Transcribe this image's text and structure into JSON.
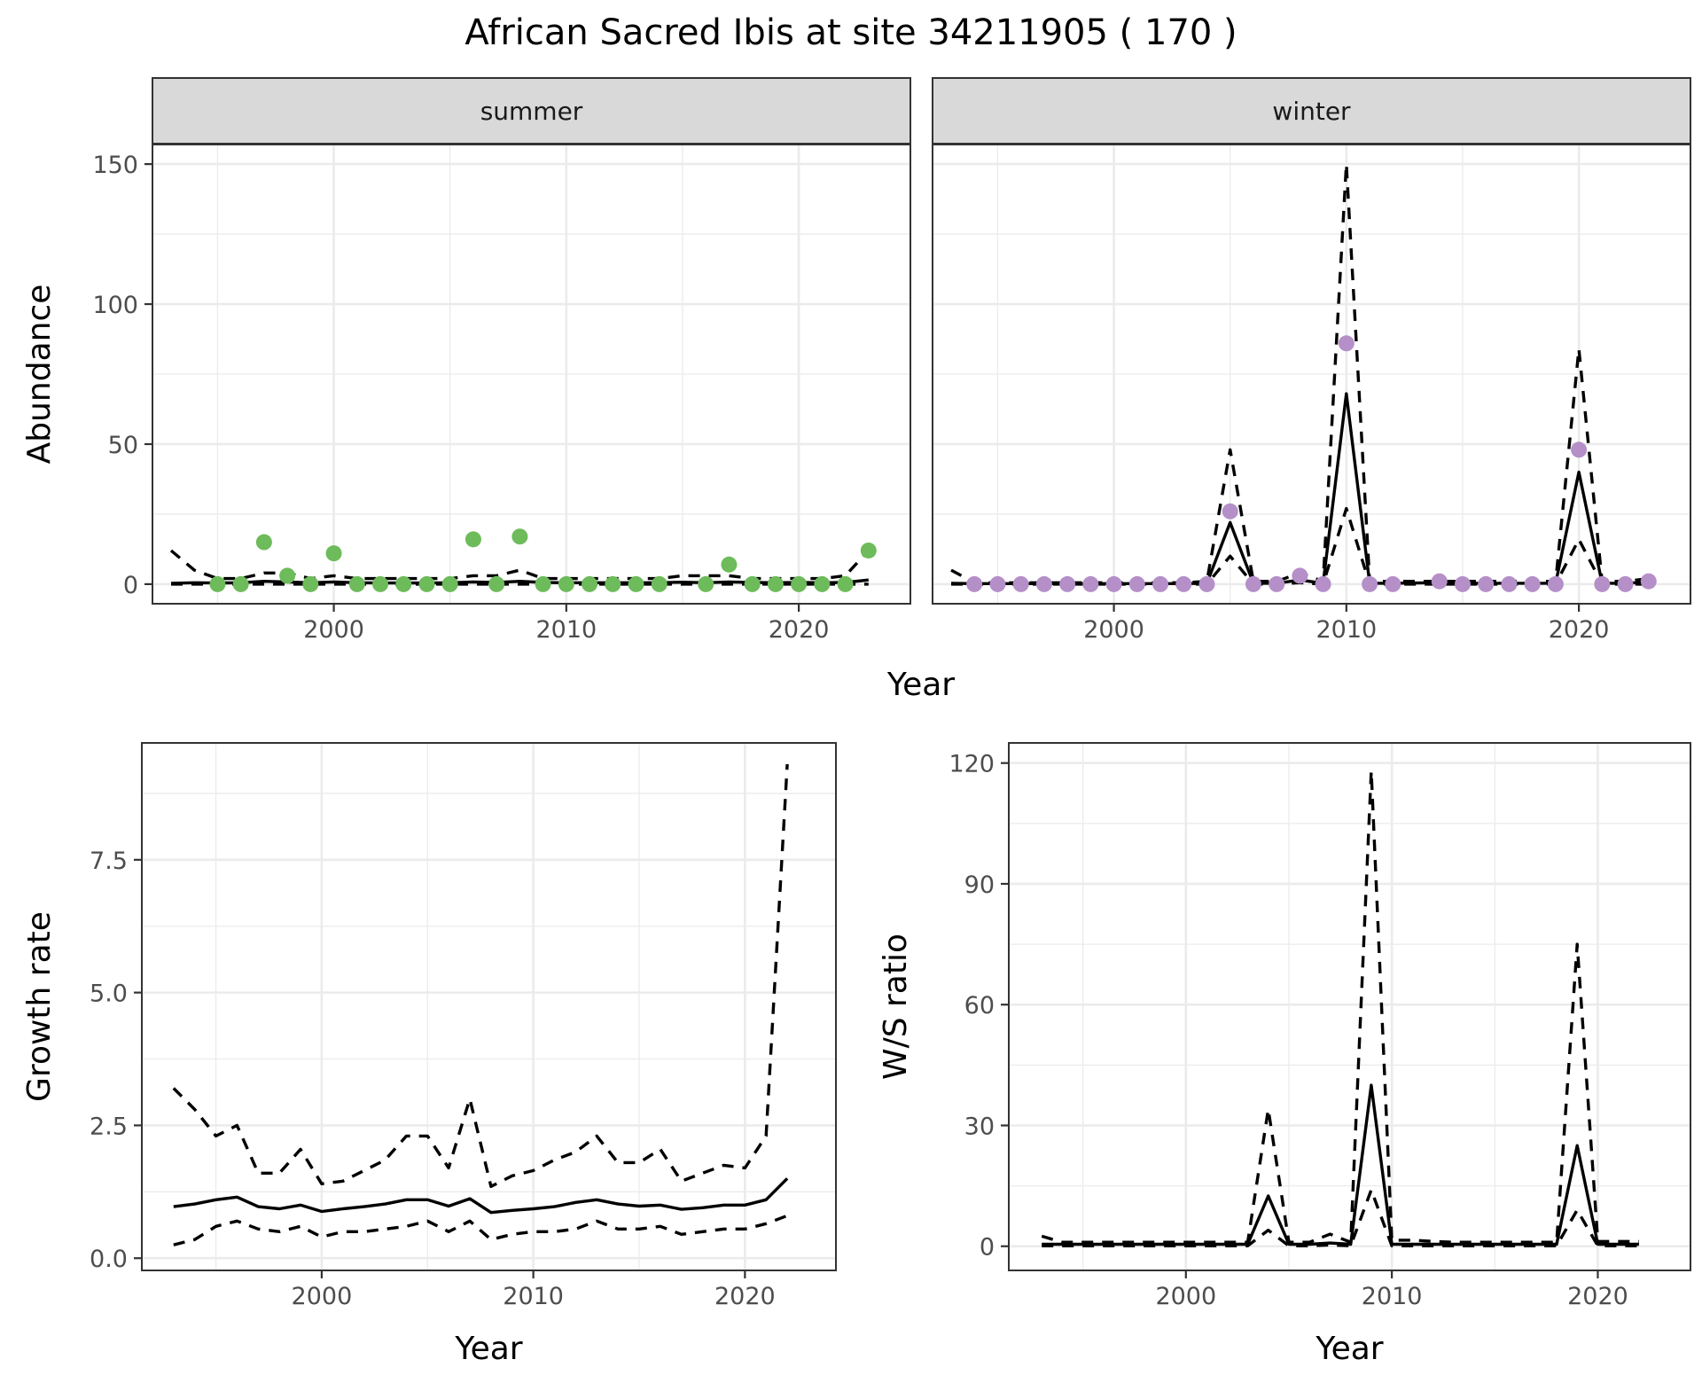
{
  "title": "African Sacred Ibis at site 34211905 ( 170 )",
  "colors": {
    "summer_points": "#6dbb5a",
    "winter_points": "#b58fc8",
    "line": "#000000",
    "strip_fill": "#d9d9d9",
    "grid": "#ebebeb"
  },
  "chart_data": [
    {
      "id": "abundance-summer",
      "type": "line",
      "facet": "summer",
      "xlabel": "Year",
      "ylabel": "Abundance",
      "xlim": [
        1992.2,
        2024.8
      ],
      "ylim": [
        -7,
        157
      ],
      "xticks": [
        2000,
        2010,
        2020
      ],
      "yticks": [
        0,
        50,
        100,
        150
      ],
      "grid": true,
      "points": {
        "name": "observed counts",
        "x": [
          1995,
          1996,
          1997,
          1998,
          1999,
          2000,
          2001,
          2002,
          2003,
          2004,
          2005,
          2006,
          2007,
          2008,
          2009,
          2010,
          2011,
          2012,
          2013,
          2014,
          2016,
          2017,
          2018,
          2019,
          2020,
          2021,
          2022,
          2023
        ],
        "y": [
          0,
          0,
          15,
          3,
          0,
          11,
          0,
          0,
          0,
          0,
          0,
          16,
          0,
          17,
          0,
          0,
          0,
          0,
          0,
          0,
          0,
          7,
          0,
          0,
          0,
          0,
          0,
          12
        ]
      },
      "series": [
        {
          "name": "mean",
          "style": "solid",
          "x": [
            1993,
            1994,
            1995,
            1996,
            1997,
            1998,
            1999,
            2000,
            2001,
            2002,
            2003,
            2004,
            2005,
            2006,
            2007,
            2008,
            2009,
            2010,
            2011,
            2012,
            2013,
            2014,
            2015,
            2016,
            2017,
            2018,
            2019,
            2020,
            2021,
            2022,
            2023
          ],
          "y": [
            0.3,
            0.5,
            0.4,
            0.5,
            1,
            0.8,
            0.5,
            0.8,
            0.5,
            0.4,
            0.4,
            0.4,
            0.5,
            0.8,
            0.6,
            1,
            0.6,
            0.5,
            0.5,
            0.5,
            0.5,
            0.5,
            0.7,
            0.5,
            0.8,
            0.6,
            0.5,
            0.6,
            0.5,
            0.6,
            1.5
          ]
        },
        {
          "name": "upper",
          "style": "dashed",
          "x": [
            1993,
            1994,
            1995,
            1996,
            1997,
            1998,
            1999,
            2000,
            2001,
            2002,
            2003,
            2004,
            2005,
            2006,
            2007,
            2008,
            2009,
            2010,
            2011,
            2012,
            2013,
            2014,
            2015,
            2016,
            2017,
            2018,
            2019,
            2020,
            2021,
            2022,
            2023
          ],
          "y": [
            12,
            5,
            2,
            2,
            4,
            4,
            2,
            3,
            2,
            2,
            2,
            2,
            2,
            3,
            3,
            5,
            2,
            2,
            2,
            2,
            2,
            2,
            3,
            3,
            3,
            2,
            2,
            2,
            2,
            3,
            12
          ]
        },
        {
          "name": "lower",
          "style": "dashed",
          "x": [
            1993,
            1994,
            1995,
            1996,
            1997,
            1998,
            1999,
            2000,
            2001,
            2002,
            2003,
            2004,
            2005,
            2006,
            2007,
            2008,
            2009,
            2010,
            2011,
            2012,
            2013,
            2014,
            2015,
            2016,
            2017,
            2018,
            2019,
            2020,
            2021,
            2022,
            2023
          ],
          "y": [
            0,
            0,
            0,
            0,
            0,
            0,
            0,
            0,
            0,
            0,
            0,
            0,
            0,
            0,
            0,
            0,
            0,
            0,
            0,
            0,
            0,
            0,
            0,
            0,
            0,
            0,
            0,
            0,
            0,
            0,
            0
          ]
        }
      ]
    },
    {
      "id": "abundance-winter",
      "type": "line",
      "facet": "winter",
      "xlabel": "Year",
      "ylabel": "Abundance",
      "xlim": [
        1992.2,
        2024.8
      ],
      "ylim": [
        -7,
        157
      ],
      "xticks": [
        2000,
        2010,
        2020
      ],
      "yticks": [
        0,
        50,
        100,
        150
      ],
      "grid": true,
      "points": {
        "name": "observed counts",
        "x": [
          1994,
          1995,
          1996,
          1997,
          1998,
          1999,
          2000,
          2001,
          2002,
          2003,
          2004,
          2005,
          2006,
          2007,
          2008,
          2009,
          2010,
          2011,
          2012,
          2014,
          2015,
          2016,
          2017,
          2018,
          2019,
          2020,
          2021,
          2022,
          2023
        ],
        "y": [
          0,
          0,
          0,
          0,
          0,
          0,
          0,
          0,
          0,
          0,
          0,
          26,
          0,
          0,
          3,
          0,
          86,
          0,
          0,
          1,
          0,
          0,
          0,
          0,
          0,
          48,
          0,
          0,
          1
        ]
      },
      "series": [
        {
          "name": "mean",
          "style": "solid",
          "x": [
            1993,
            1994,
            1995,
            1996,
            1997,
            1998,
            1999,
            2000,
            2001,
            2002,
            2003,
            2004,
            2005,
            2006,
            2007,
            2008,
            2009,
            2010,
            2011,
            2012,
            2013,
            2014,
            2015,
            2016,
            2017,
            2018,
            2019,
            2020,
            2021,
            2022,
            2023
          ],
          "y": [
            0.3,
            0.2,
            0.2,
            0.2,
            0.2,
            0.2,
            0.2,
            0.2,
            0.2,
            0.2,
            0.2,
            0.3,
            22,
            0.3,
            0.3,
            1.5,
            0.3,
            68,
            0.3,
            0.3,
            0.4,
            0.5,
            0.3,
            0.3,
            0.3,
            0.3,
            0.3,
            40,
            0.3,
            0.3,
            0.8
          ]
        },
        {
          "name": "upper",
          "style": "dashed",
          "x": [
            1993,
            1994,
            1995,
            1996,
            1997,
            1998,
            1999,
            2000,
            2001,
            2002,
            2003,
            2004,
            2005,
            2006,
            2007,
            2008,
            2009,
            2010,
            2011,
            2012,
            2013,
            2014,
            2015,
            2016,
            2017,
            2018,
            2019,
            2020,
            2021,
            2022,
            2023
          ],
          "y": [
            5,
            0.5,
            0.5,
            0.5,
            0.5,
            0.5,
            0.5,
            0.5,
            0.5,
            0.5,
            0.5,
            1,
            48,
            1,
            1,
            4,
            1,
            150,
            1,
            1,
            1,
            1,
            1,
            1,
            1,
            1,
            1,
            84,
            1,
            1,
            2
          ]
        },
        {
          "name": "lower",
          "style": "dashed",
          "x": [
            1993,
            1994,
            1995,
            1996,
            1997,
            1998,
            1999,
            2000,
            2001,
            2002,
            2003,
            2004,
            2005,
            2006,
            2007,
            2008,
            2009,
            2010,
            2011,
            2012,
            2013,
            2014,
            2015,
            2016,
            2017,
            2018,
            2019,
            2020,
            2021,
            2022,
            2023
          ],
          "y": [
            0,
            0,
            0,
            0,
            0,
            0,
            0,
            0,
            0,
            0,
            0,
            0,
            10,
            0,
            0,
            0.5,
            0,
            27,
            0,
            0,
            0,
            0,
            0,
            0,
            0,
            0,
            0,
            16,
            0,
            0,
            0
          ]
        }
      ]
    },
    {
      "id": "growth-rate",
      "type": "line",
      "xlabel": "Year",
      "ylabel": "Growth rate",
      "xlim": [
        1991.5,
        2024.3
      ],
      "ylim": [
        -0.23,
        9.7
      ],
      "xticks": [
        2000,
        2010,
        2020
      ],
      "yticks": [
        0.0,
        2.5,
        5.0,
        7.5
      ],
      "ytick_labels": [
        "0.0",
        "2.5",
        "5.0",
        "7.5"
      ],
      "grid": true,
      "series": [
        {
          "name": "mean",
          "style": "solid",
          "x": [
            1993,
            1994,
            1995,
            1996,
            1997,
            1998,
            1999,
            2000,
            2001,
            2002,
            2003,
            2004,
            2005,
            2006,
            2007,
            2008,
            2009,
            2010,
            2011,
            2012,
            2013,
            2014,
            2015,
            2016,
            2017,
            2018,
            2019,
            2020,
            2021,
            2022
          ],
          "y": [
            0.97,
            1.02,
            1.1,
            1.15,
            0.97,
            0.93,
            1.0,
            0.88,
            0.93,
            0.97,
            1.02,
            1.1,
            1.1,
            0.98,
            1.12,
            0.86,
            0.9,
            0.93,
            0.97,
            1.05,
            1.1,
            1.02,
            0.98,
            1.0,
            0.92,
            0.95,
            1.0,
            1.0,
            1.1,
            1.5
          ]
        },
        {
          "name": "upper",
          "style": "dashed",
          "x": [
            1993,
            1994,
            1995,
            1996,
            1997,
            1998,
            1999,
            2000,
            2001,
            2002,
            2003,
            2004,
            2005,
            2006,
            2007,
            2008,
            2009,
            2010,
            2011,
            2012,
            2013,
            2014,
            2015,
            2016,
            2017,
            2018,
            2019,
            2020,
            2021,
            2022
          ],
          "y": [
            3.2,
            2.8,
            2.3,
            2.5,
            1.6,
            1.6,
            2.05,
            1.4,
            1.45,
            1.65,
            1.85,
            2.3,
            2.3,
            1.7,
            3.0,
            1.35,
            1.55,
            1.65,
            1.85,
            2.0,
            2.3,
            1.8,
            1.8,
            2.05,
            1.45,
            1.6,
            1.75,
            1.7,
            2.3,
            9.3
          ]
        },
        {
          "name": "lower",
          "style": "dashed",
          "x": [
            1993,
            1994,
            1995,
            1996,
            1997,
            1998,
            1999,
            2000,
            2001,
            2002,
            2003,
            2004,
            2005,
            2006,
            2007,
            2008,
            2009,
            2010,
            2011,
            2012,
            2013,
            2014,
            2015,
            2016,
            2017,
            2018,
            2019,
            2020,
            2021,
            2022
          ],
          "y": [
            0.25,
            0.35,
            0.6,
            0.7,
            0.55,
            0.5,
            0.6,
            0.4,
            0.5,
            0.5,
            0.55,
            0.6,
            0.7,
            0.5,
            0.7,
            0.35,
            0.45,
            0.5,
            0.5,
            0.55,
            0.7,
            0.55,
            0.55,
            0.6,
            0.45,
            0.5,
            0.55,
            0.55,
            0.65,
            0.8
          ]
        }
      ]
    },
    {
      "id": "ws-ratio",
      "type": "line",
      "xlabel": "Year",
      "ylabel": "W/S ratio",
      "xlim": [
        1991.4,
        2024.5
      ],
      "ylim": [
        -6,
        125
      ],
      "xticks": [
        2000,
        2010,
        2020
      ],
      "yticks": [
        0,
        30,
        60,
        90,
        120
      ],
      "grid": true,
      "series": [
        {
          "name": "mean",
          "style": "solid",
          "x": [
            1993,
            1994,
            1995,
            1996,
            1997,
            1998,
            1999,
            2000,
            2001,
            2002,
            2003,
            2004,
            2005,
            2006,
            2007,
            2008,
            2009,
            2010,
            2011,
            2012,
            2013,
            2014,
            2015,
            2016,
            2017,
            2018,
            2019,
            2020,
            2021,
            2022
          ],
          "y": [
            0.5,
            0.5,
            0.5,
            0.5,
            0.5,
            0.5,
            0.5,
            0.5,
            0.5,
            0.5,
            0.5,
            12.5,
            0.5,
            0.5,
            0.8,
            0.5,
            40,
            0.5,
            0.5,
            0.5,
            0.5,
            0.5,
            0.5,
            0.5,
            0.5,
            0.5,
            25,
            0.5,
            0.5,
            0.5
          ]
        },
        {
          "name": "upper",
          "style": "dashed",
          "x": [
            1993,
            1994,
            1995,
            1996,
            1997,
            1998,
            1999,
            2000,
            2001,
            2002,
            2003,
            2004,
            2005,
            2006,
            2007,
            2008,
            2009,
            2010,
            2011,
            2012,
            2013,
            2014,
            2015,
            2016,
            2017,
            2018,
            2019,
            2020,
            2021,
            2022
          ],
          "y": [
            2.5,
            1,
            1,
            1,
            1,
            1,
            1,
            1,
            1,
            1,
            1,
            34,
            1,
            1,
            3,
            1,
            118,
            1.5,
            1.5,
            1.2,
            1,
            1,
            1,
            1,
            1,
            1,
            75,
            1.2,
            1.2,
            1.2
          ]
        },
        {
          "name": "lower",
          "style": "dashed",
          "x": [
            1993,
            1994,
            1995,
            1996,
            1997,
            1998,
            1999,
            2000,
            2001,
            2002,
            2003,
            2004,
            2005,
            2006,
            2007,
            2008,
            2009,
            2010,
            2011,
            2012,
            2013,
            2014,
            2015,
            2016,
            2017,
            2018,
            2019,
            2020,
            2021,
            2022
          ],
          "y": [
            0.1,
            0.1,
            0.1,
            0.1,
            0.1,
            0.1,
            0.1,
            0.1,
            0.1,
            0.1,
            0.1,
            4,
            0.1,
            0.1,
            0.3,
            0.1,
            14,
            0.1,
            0.1,
            0.1,
            0.1,
            0.1,
            0.1,
            0.1,
            0.1,
            0.1,
            9,
            0.1,
            0.1,
            0.1
          ]
        }
      ]
    }
  ]
}
